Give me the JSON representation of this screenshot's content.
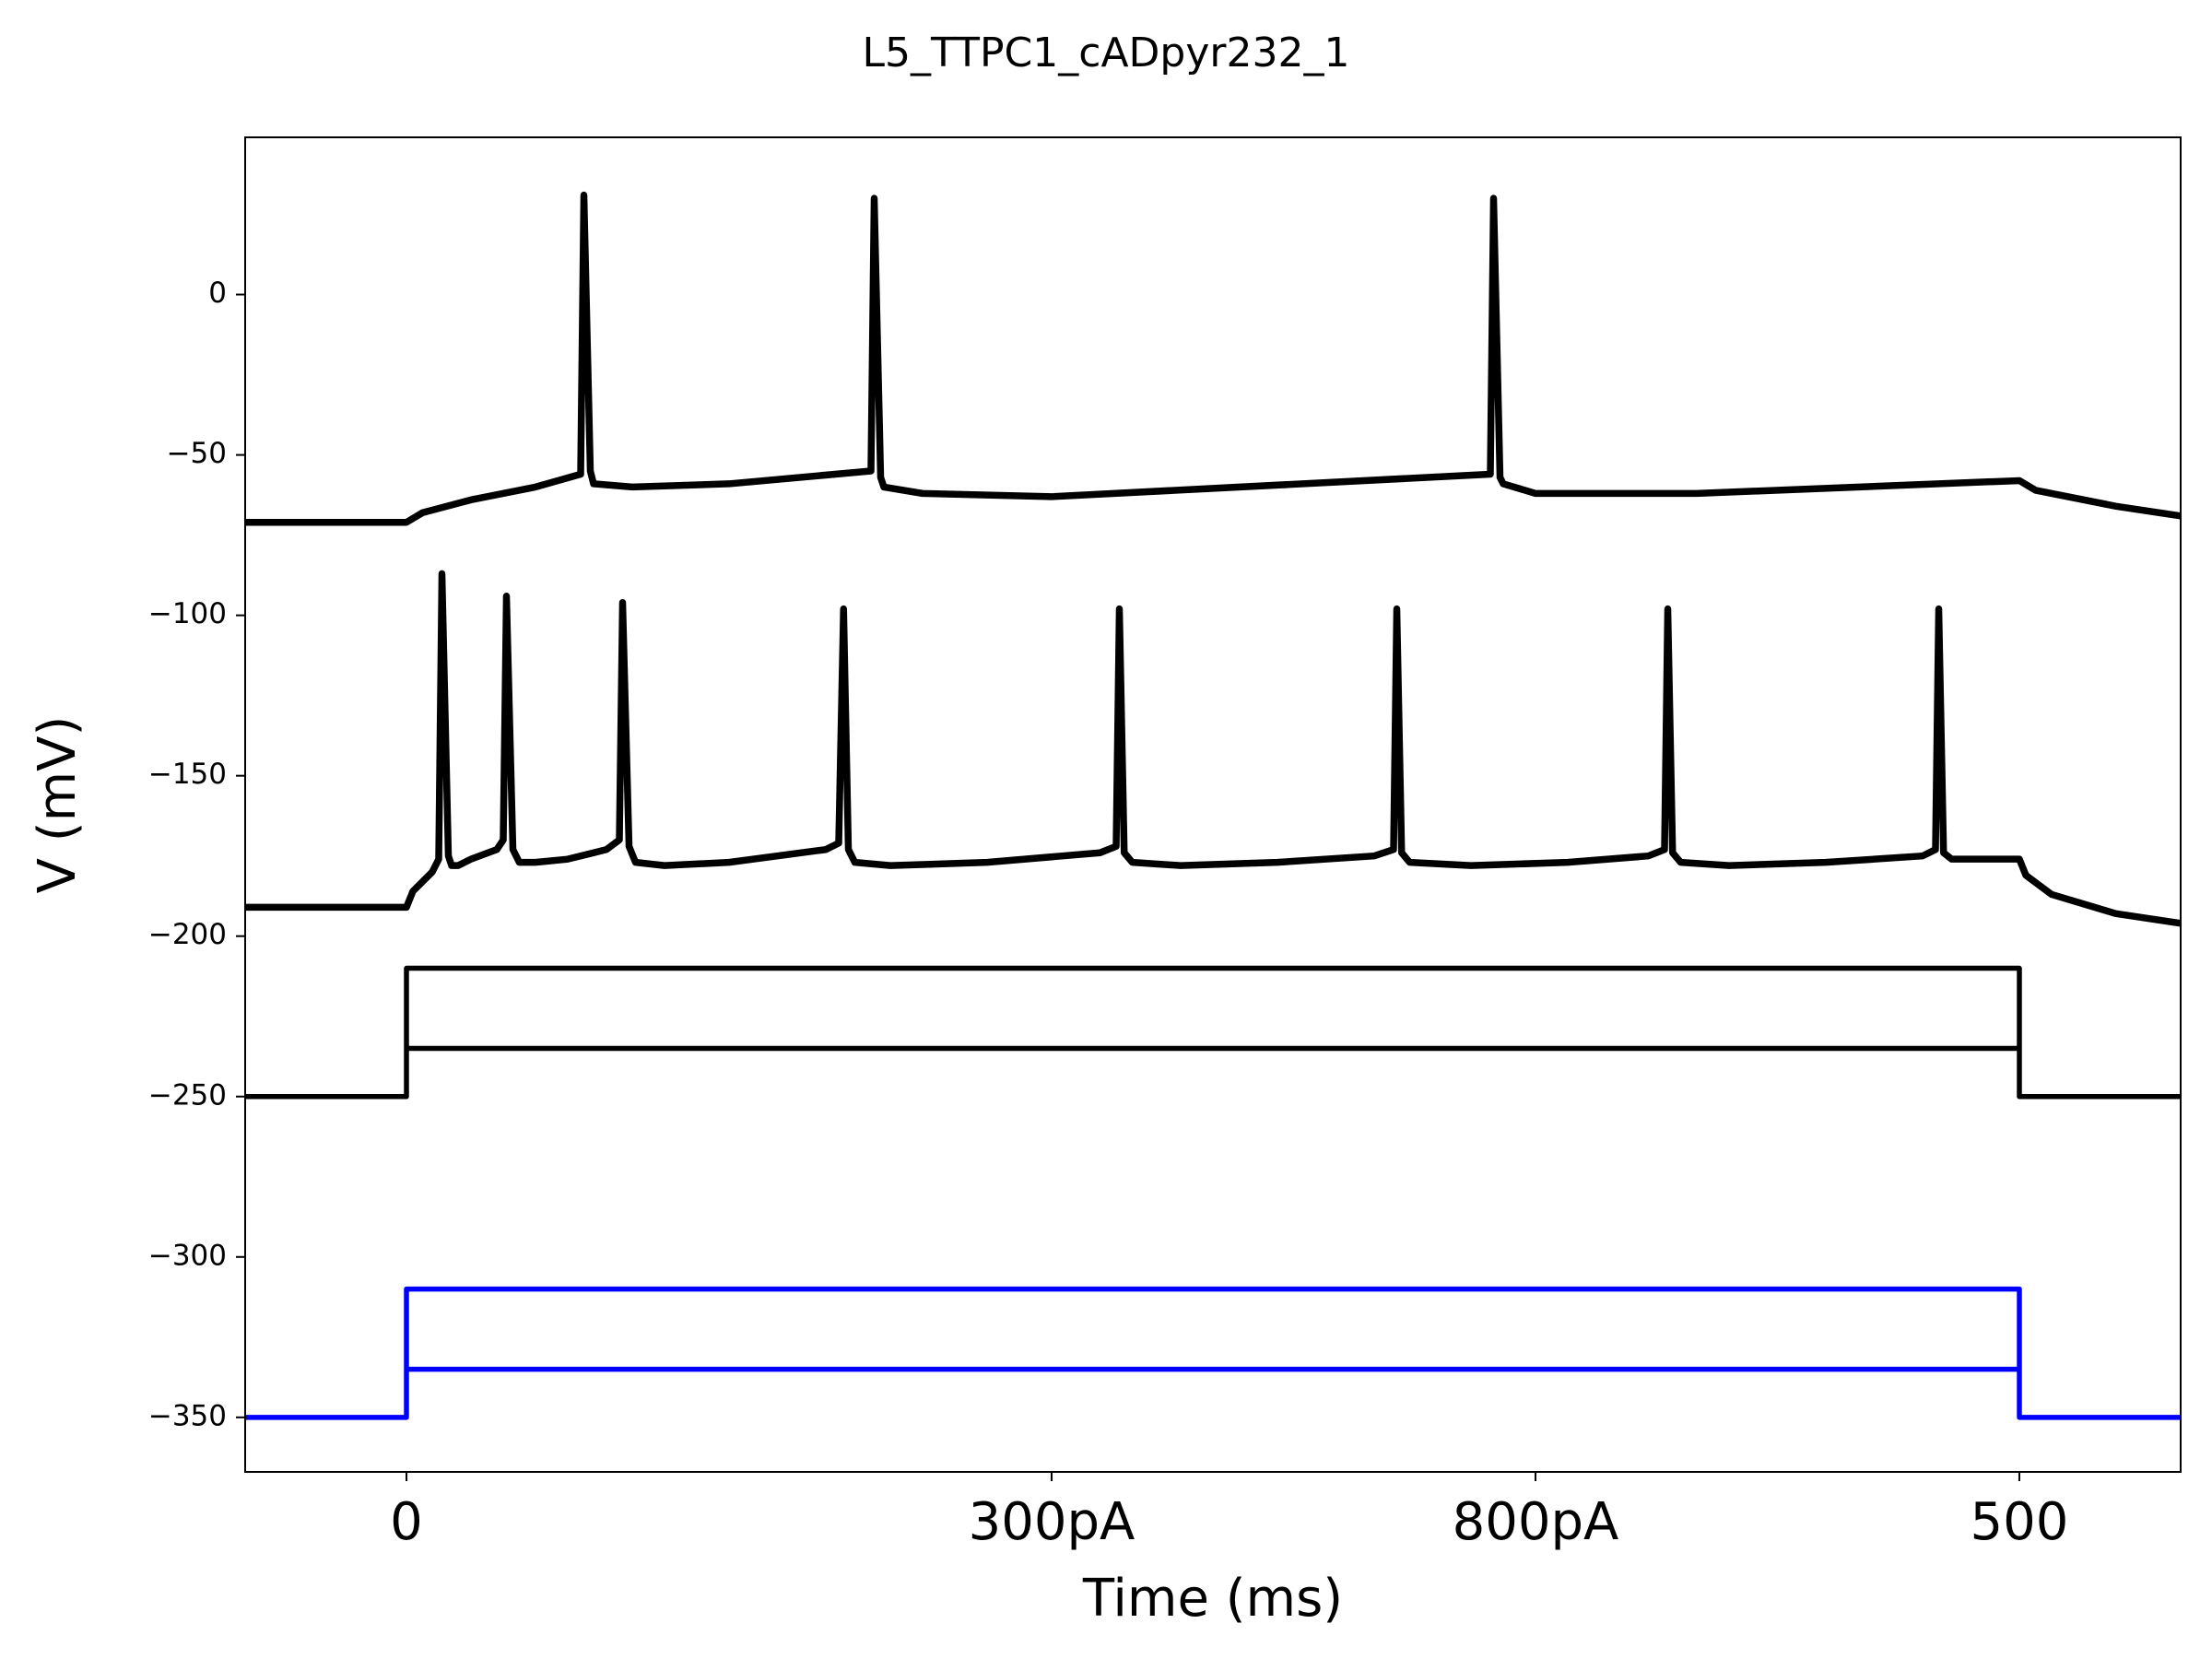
{
  "chart_data": {
    "type": "line",
    "title": "L5_TTPC1_cADpyr232_1",
    "xlabel": "Time (ms)",
    "ylabel": "V (mV)",
    "xlim": [
      -50,
      550
    ],
    "ylim": [
      -367,
      49
    ],
    "xticks": [
      0,
      {
        "value": 200,
        "label": "300pA"
      },
      {
        "value": 350,
        "label": "800pA"
      },
      500
    ],
    "yticks": [
      0,
      {
        "value": -50,
        "label": "−50"
      },
      {
        "value": -100,
        "label": "−100"
      },
      {
        "value": -150,
        "label": "−150"
      },
      {
        "value": -200,
        "label": "−200"
      },
      {
        "value": -250,
        "label": "−250"
      },
      {
        "value": -300,
        "label": "−300"
      },
      {
        "value": -350,
        "label": "−350"
      }
    ],
    "series": [
      {
        "color": "#000000",
        "width": 7.5,
        "x": [
          -50,
          0,
          5,
          20,
          40,
          54,
          55,
          57,
          58,
          70,
          100,
          144,
          145,
          147,
          148,
          160,
          200,
          336,
          337,
          339,
          340,
          350,
          400,
          500,
          505,
          530,
          550
        ],
        "values": [
          -71,
          -71,
          -68,
          -64,
          -60,
          -56,
          31,
          -55,
          -59,
          -60,
          -59,
          -55,
          30,
          -57,
          -60,
          -62,
          -63,
          -56,
          30,
          -57,
          -59,
          -62,
          -62,
          -58,
          -61,
          -66,
          -69
        ]
      },
      {
        "color": "#000000",
        "width": 7.5,
        "x": [
          -50,
          0,
          2,
          8,
          10,
          11,
          13,
          14,
          16,
          20,
          28,
          30,
          31,
          33,
          35,
          40,
          50,
          62,
          66,
          67,
          69,
          71,
          80,
          100,
          130,
          134,
          135.5,
          137,
          139,
          150,
          180,
          215,
          220,
          221,
          222.5,
          225,
          240,
          270,
          300,
          306,
          307,
          308.5,
          311,
          330,
          360,
          385,
          390,
          391,
          392.5,
          395,
          410,
          440,
          470,
          474,
          475,
          476.5,
          479,
          490,
          500,
          502,
          510,
          530,
          550
        ],
        "values": [
          -191,
          -191,
          -186,
          -180,
          -176,
          -87,
          -175,
          -178,
          -178,
          -176,
          -173,
          -170,
          -94,
          -173,
          -177,
          -177,
          -176,
          -173,
          -170,
          -96,
          -172,
          -177,
          -178,
          -177,
          -173,
          -171,
          -98,
          -173,
          -177,
          -178,
          -177,
          -174,
          -172,
          -98,
          -174,
          -177,
          -178,
          -177,
          -175,
          -173,
          -98,
          -174,
          -177,
          -178,
          -177,
          -175,
          -173,
          -98,
          -174,
          -177,
          -178,
          -177,
          -175,
          -173,
          -98,
          -174,
          -176,
          -176,
          -176,
          -181,
          -187,
          -193,
          -196
        ]
      },
      {
        "color": "#000000",
        "width": 5.5,
        "x": [
          -50,
          0,
          0,
          500,
          500,
          550
        ],
        "values": [
          -250,
          -250,
          -210,
          -210,
          -250,
          -250
        ]
      },
      {
        "color": "#000000",
        "width": 5.5,
        "x": [
          0,
          500
        ],
        "values": [
          -235,
          -235
        ]
      },
      {
        "color": "#0000ff",
        "width": 5.5,
        "x": [
          -50,
          0,
          0,
          500,
          500,
          550
        ],
        "values": [
          -350,
          -350,
          -310,
          -310,
          -350,
          -350
        ]
      },
      {
        "color": "#0000ff",
        "width": 5.5,
        "x": [
          0,
          500
        ],
        "values": [
          -335,
          -335
        ]
      }
    ]
  }
}
